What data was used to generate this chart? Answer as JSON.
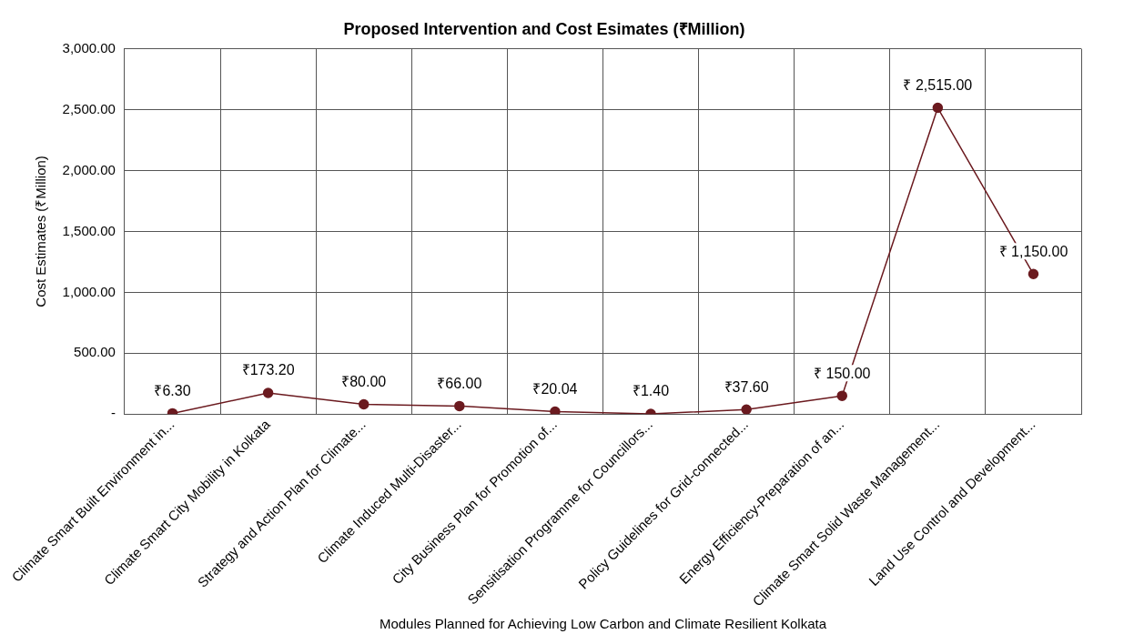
{
  "chart_data": {
    "type": "line",
    "title": "Proposed Intervention and Cost Esimates (₹Million)",
    "xlabel": "Modules Planned for Achieving Low Carbon and Climate Resilient Kolkata",
    "ylabel": "Cost Estimates (₹Million)",
    "categories": [
      "Climate Smart Built Environment in...",
      "Climate Smart City Mobility in Kolkata",
      "Strategy and Action Plan for Climate...",
      "Climate Induced Multi-Disaster...",
      "City Business Plan for Promotion of...",
      "Sensitisation Programme for Councillors...",
      "Policy Guidelines for Grid-connected...",
      "Energy Efficiency-Preparation of an...",
      "Climate Smart Solid Waste Management...",
      "Land Use Control and Development..."
    ],
    "values": [
      6.3,
      173.2,
      80.0,
      66.0,
      20.04,
      1.4,
      37.6,
      150.0,
      2515.0,
      1150.0
    ],
    "value_labels": [
      "₹6.30",
      "₹173.20",
      "₹80.00",
      "₹66.00",
      "₹20.04",
      "₹1.40",
      "₹37.60",
      "₹ 150.00",
      "₹ 2,515.00",
      "₹ 1,150.00"
    ],
    "color": "#6b1a1f",
    "marker": "circle",
    "line_style": "solid",
    "grid": true,
    "legend": false,
    "ylim": [
      0,
      3000
    ],
    "yticks": [
      {
        "value": 0,
        "label": "-"
      },
      {
        "value": 500,
        "label": "500.00"
      },
      {
        "value": 1000,
        "label": "1,000.00"
      },
      {
        "value": 1500,
        "label": "1,500.00"
      },
      {
        "value": 2000,
        "label": "2,000.00"
      },
      {
        "value": 2500,
        "label": "2,500.00"
      },
      {
        "value": 3000,
        "label": "3,000.00"
      }
    ]
  }
}
